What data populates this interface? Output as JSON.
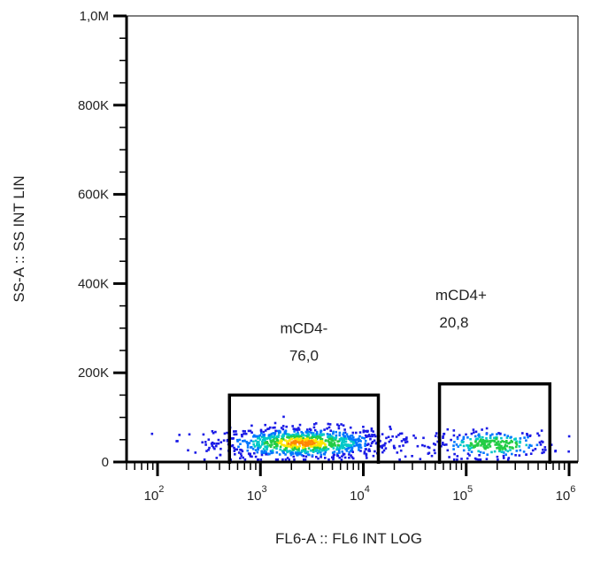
{
  "chart_data": {
    "type": "scatter",
    "plot_style": "pseudocolor density dot plot",
    "xlabel": "FL6-A :: FL6 INT LOG",
    "ylabel": "SS-A :: SS INT LIN",
    "x_scale": "log",
    "xlim": [
      50,
      1000000
    ],
    "ylim": [
      0,
      1000000
    ],
    "x_ticks": [
      {
        "value": 100,
        "base": "10",
        "exp": "2"
      },
      {
        "value": 1000,
        "base": "10",
        "exp": "3"
      },
      {
        "value": 10000,
        "base": "10",
        "exp": "4"
      },
      {
        "value": 100000,
        "base": "10",
        "exp": "5"
      },
      {
        "value": 1000000,
        "base": "10",
        "exp": "6"
      }
    ],
    "y_ticks": [
      {
        "value": 0,
        "label": "0"
      },
      {
        "value": 200000,
        "label": "200K"
      },
      {
        "value": 400000,
        "label": "400K"
      },
      {
        "value": 600000,
        "label": "600K"
      },
      {
        "value": 800000,
        "label": "800K"
      },
      {
        "value": 1000000,
        "label": "1,0M"
      }
    ],
    "gates": [
      {
        "name": "mCD4-",
        "percent": "76,0",
        "x_range": [
          500,
          14000
        ],
        "y_range": [
          0,
          150000
        ]
      },
      {
        "name": "mCD4+",
        "percent": "20,8",
        "x_range": [
          55000,
          650000
        ],
        "y_range": [
          0,
          175000
        ]
      }
    ],
    "populations": [
      {
        "gate": "mCD4-",
        "x_center": 2500,
        "y_center": 45000,
        "x_spread_log": 0.42,
        "y_spread": 18000
      },
      {
        "gate": "mCD4+",
        "x_center": 180000,
        "y_center": 42000,
        "x_spread_log": 0.28,
        "y_spread": 15000
      }
    ],
    "density_colors": [
      "#1a1ae6",
      "#0077ff",
      "#00c8c8",
      "#22cc44",
      "#ffe600",
      "#ff8800"
    ],
    "grid": false,
    "legend": "none"
  }
}
